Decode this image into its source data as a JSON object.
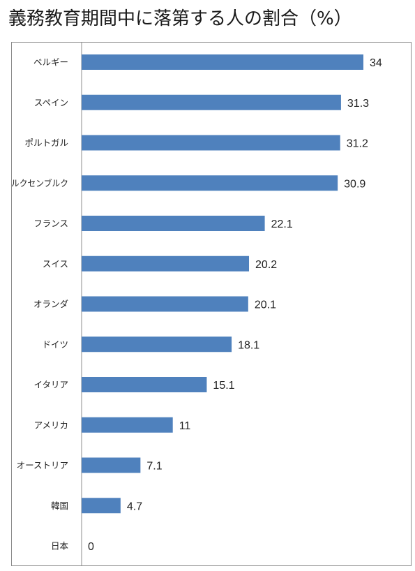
{
  "chart_data": {
    "type": "bar",
    "orientation": "horizontal",
    "title": "義務教育期間中に落第する人の割合（%）",
    "categories": [
      "ベルギー",
      "スペイン",
      "ポルトガル",
      "ルクセンブルク",
      "フランス",
      "スイス",
      "オランダ",
      "ドイツ",
      "イタリア",
      "アメリカ",
      "オーストリア",
      "韓国",
      "日本"
    ],
    "values": [
      34,
      31.3,
      31.2,
      30.9,
      22.1,
      20.2,
      20.1,
      18.1,
      15.1,
      11,
      7.1,
      4.7,
      0
    ],
    "value_labels": [
      "34",
      "31.3",
      "31.2",
      "30.9",
      "22.1",
      "20.2",
      "20.1",
      "18.1",
      "15.1",
      "11",
      "7.1",
      "4.7",
      "0"
    ],
    "xlim": [
      0,
      40
    ],
    "grid": false,
    "legend": "none",
    "bar_color": "#4f81bd"
  }
}
